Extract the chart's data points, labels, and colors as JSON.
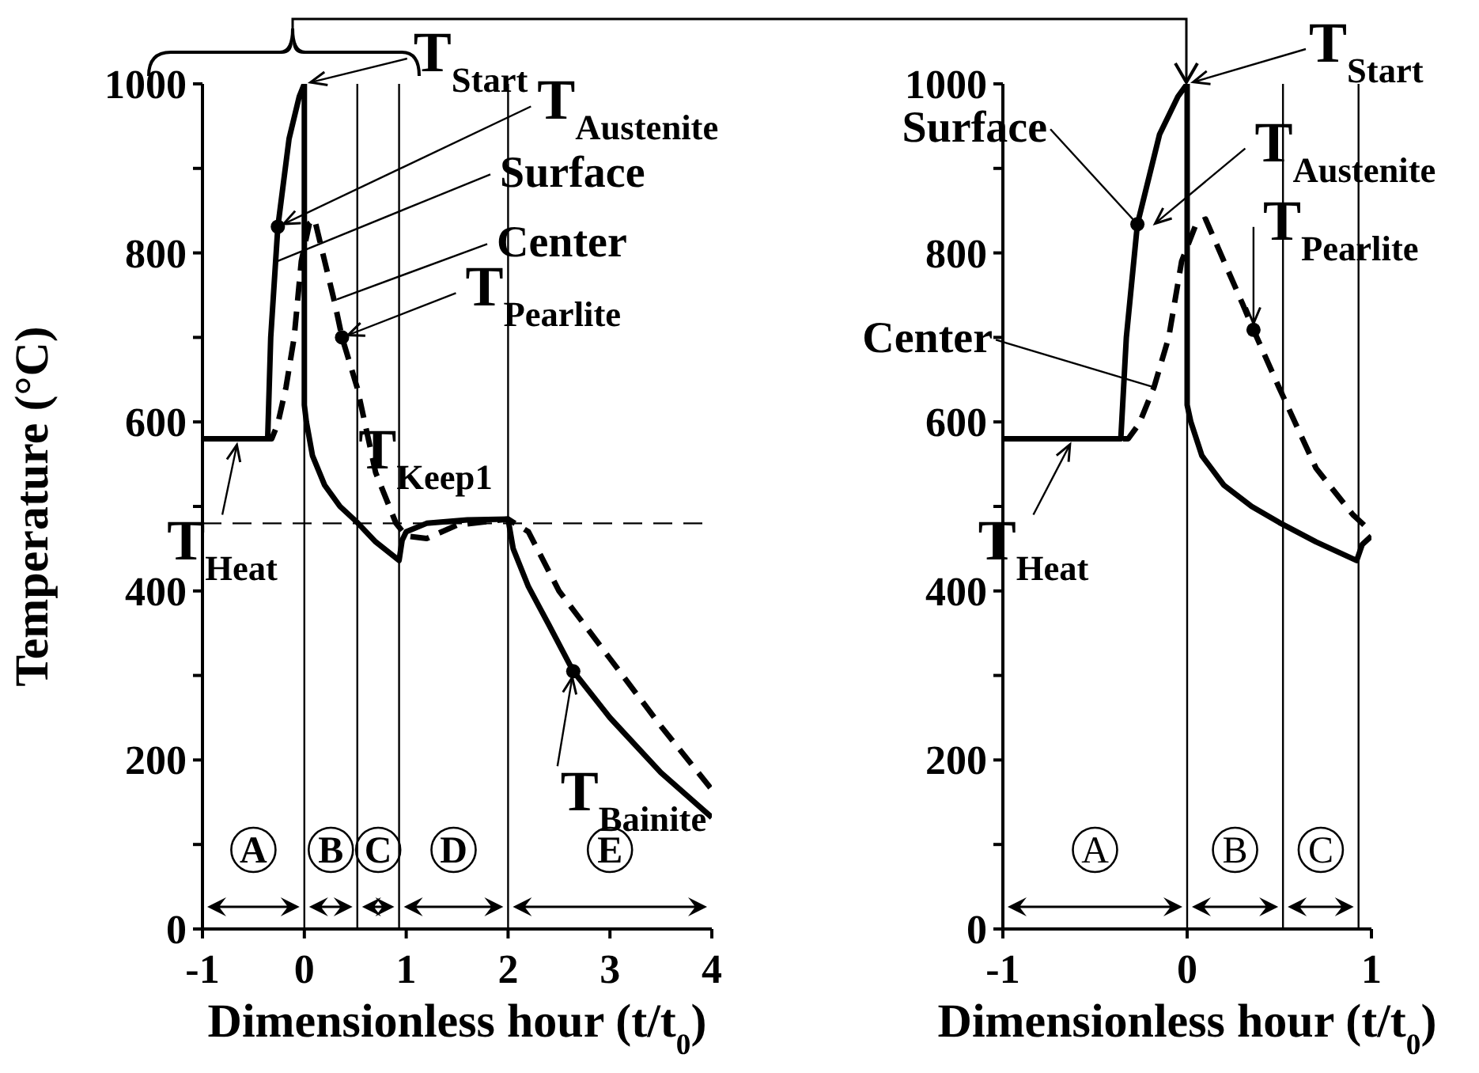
{
  "chart_data": [
    {
      "type": "line",
      "xlabel": "Dimensionless hour (t/t$_{0}$)",
      "ylabel": "Temperature (°C)",
      "xlim": [
        -1,
        4
      ],
      "ylim": [
        0,
        1000
      ],
      "xticks": [
        -1,
        0,
        1,
        2,
        3,
        4
      ],
      "yticks": [
        0,
        {
          "value": 100,
          "label": null
        },
        200,
        {
          "value": 300,
          "label": null
        },
        400,
        {
          "value": 500,
          "label": null
        },
        600,
        {
          "value": 700,
          "label": null
        },
        800,
        {
          "value": 900,
          "label": null
        },
        1000
      ],
      "grid": false,
      "legend": false,
      "series": [
        {
          "color": "#000000",
          "line_style": "solid",
          "x": [
            -1,
            -0.36,
            -0.33,
            -0.26,
            -0.15,
            -0.05,
            0,
            0,
            0.02,
            0.08,
            0.2,
            0.35,
            0.52,
            0.7,
            0.93,
            0.96,
            1.0,
            1.2,
            1.6,
            2.0,
            2.05,
            2.2,
            2.4,
            2.64,
            3.0,
            3.5,
            4.0
          ],
          "values": [
            580,
            580,
            700,
            831,
            935,
            985,
            1000,
            620,
            600,
            560,
            525,
            500,
            481,
            458,
            436,
            460,
            470,
            480,
            484,
            485,
            450,
            405,
            360,
            305,
            250,
            185,
            132
          ]
        },
        {
          "color": "#000000",
          "line_style": "dashed",
          "x": [
            -1,
            -0.32,
            -0.26,
            -0.18,
            -0.1,
            -0.03,
            0.05,
            0.1,
            0.2,
            0.3,
            0.37,
            0.52,
            0.7,
            0.9,
            1.0,
            1.2,
            1.5,
            2.0,
            2.2,
            2.5,
            3.0,
            3.5,
            4.0
          ],
          "values": [
            580,
            580,
            598,
            641,
            700,
            790,
            835,
            840,
            790,
            740,
            700,
            640,
            540,
            480,
            465,
            462,
            478,
            485,
            470,
            400,
            320,
            240,
            165
          ]
        },
        {
          "type": "scatter",
          "color": "#000000",
          "marker": "circle",
          "x": [
            -0.26,
            0.37,
            2.64
          ],
          "values": [
            831,
            700,
            305
          ]
        }
      ],
      "ref_lines": [
        {
          "axis": "x",
          "value": 0
        },
        {
          "axis": "x",
          "value": 0.52
        },
        {
          "axis": "x",
          "value": 0.93
        },
        {
          "axis": "x",
          "value": 2
        },
        {
          "axis": "y",
          "value": 480,
          "line_style": "dashed"
        }
      ],
      "annotations": [
        {
          "text": "T$_{Start}$",
          "x": 0,
          "y": 1000
        },
        {
          "text": "T$_{Austenite}$",
          "x": -0.26,
          "y": 831
        },
        {
          "text": "Surface",
          "x": -0.27,
          "y": 790
        },
        {
          "text": "Center",
          "x": 0.32,
          "y": 745
        },
        {
          "text": "T$_{Pearlite}$",
          "x": 0.37,
          "y": 700
        },
        {
          "text": "T$_{Keep1}$",
          "x": 1.5,
          "y": 485
        },
        {
          "text": "T$_{Heat}$",
          "x": -0.65,
          "y": 580
        },
        {
          "text": "T$_{Bainite}$",
          "x": 2.64,
          "y": 305
        },
        "A",
        "B",
        "C",
        "D",
        "E"
      ]
    },
    {
      "type": "line",
      "xlabel": "Dimensionless hour (t/t$_{0}$)",
      "xlim": [
        -1,
        1
      ],
      "ylim": [
        0,
        1000
      ],
      "xticks": [
        -1,
        0,
        1
      ],
      "yticks": [
        0,
        {
          "value": 100,
          "label": null
        },
        200,
        {
          "value": 300,
          "label": null
        },
        400,
        {
          "value": 500,
          "label": null
        },
        600,
        {
          "value": 700,
          "label": null
        },
        800,
        {
          "value": 900,
          "label": null
        },
        1000
      ],
      "grid": false,
      "legend": false,
      "series": [
        {
          "color": "#000000",
          "line_style": "solid",
          "x": [
            -1,
            -0.36,
            -0.33,
            -0.27,
            -0.15,
            -0.05,
            0,
            0,
            0.02,
            0.08,
            0.2,
            0.35,
            0.5,
            0.7,
            0.92,
            0.95,
            1.0
          ],
          "values": [
            580,
            580,
            700,
            834,
            940,
            985,
            1000,
            620,
            600,
            560,
            525,
            500,
            481,
            458,
            436,
            455,
            465
          ]
        },
        {
          "color": "#000000",
          "line_style": "dashed",
          "x": [
            -1,
            -0.32,
            -0.26,
            -0.18,
            -0.1,
            -0.03,
            0.05,
            0.1,
            0.2,
            0.3,
            0.36,
            0.5,
            0.7,
            0.9,
            1.0
          ],
          "values": [
            580,
            580,
            598,
            641,
            700,
            790,
            835,
            840,
            790,
            740,
            709,
            640,
            545,
            490,
            470
          ]
        },
        {
          "type": "scatter",
          "color": "#000000",
          "marker": "circle",
          "x": [
            -0.27,
            0.36
          ],
          "values": [
            834,
            709
          ]
        }
      ],
      "ref_lines": [
        {
          "axis": "x",
          "value": 0
        },
        {
          "axis": "x",
          "value": 0.52
        },
        {
          "axis": "x",
          "value": 0.93
        }
      ],
      "annotations": [
        {
          "text": "T$_{Start}$",
          "x": 0,
          "y": 1000
        },
        {
          "text": "Surface",
          "x": -0.27,
          "y": 834
        },
        {
          "text": "T$_{Austenite}$",
          "x": -0.2,
          "y": 830
        },
        {
          "text": "Center",
          "x": -0.18,
          "y": 641
        },
        {
          "text": "T$_{Pearlite}$",
          "x": 0.36,
          "y": 709
        },
        {
          "text": "T$_{Heat}$",
          "x": -0.62,
          "y": 580
        },
        "A",
        "B",
        "C"
      ]
    }
  ]
}
